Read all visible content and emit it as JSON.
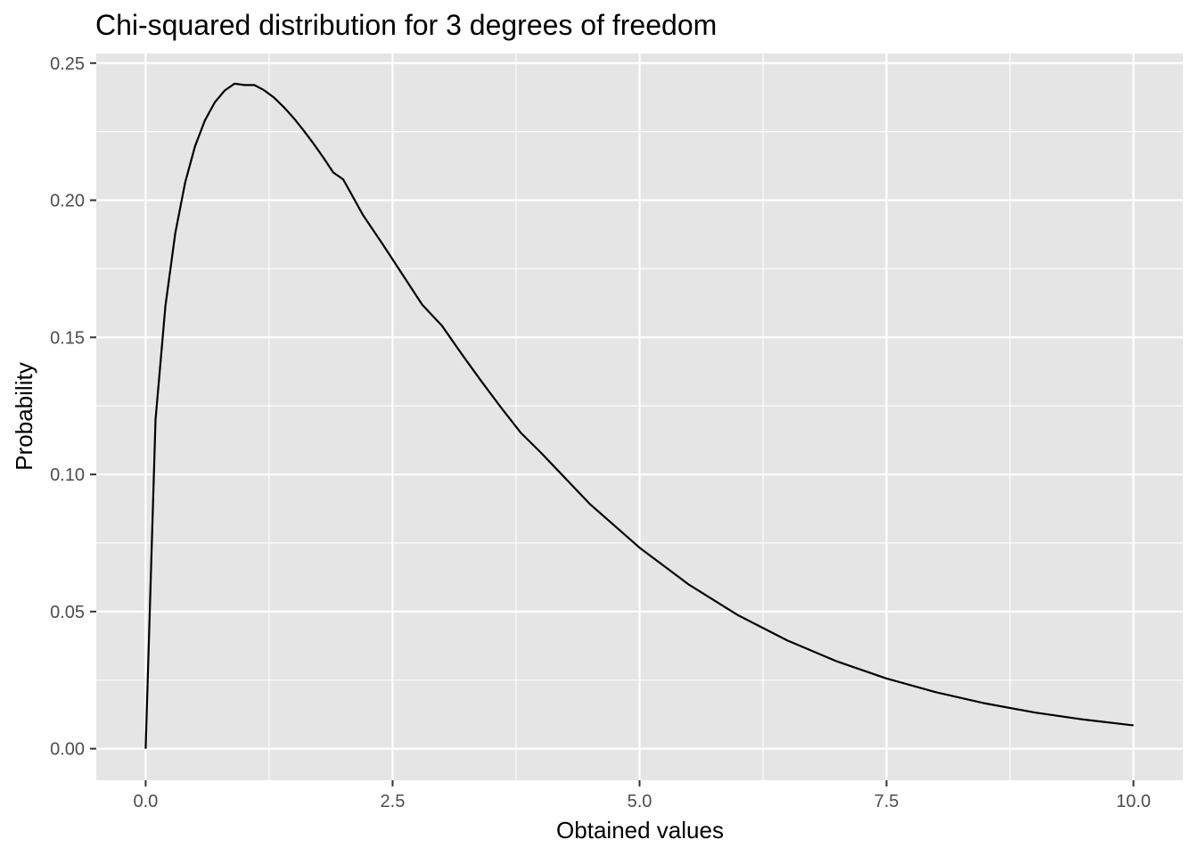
{
  "chart_data": {
    "type": "line",
    "title": "Chi-squared distribution for 3 degrees of freedom",
    "xlabel": "Obtained values",
    "ylabel": "Probability",
    "xlim": [
      -0.5,
      10.5
    ],
    "ylim": [
      -0.0115,
      0.2535
    ],
    "x_ticks": [
      0.0,
      2.5,
      5.0,
      7.5,
      10.0
    ],
    "x_tick_labels": [
      "0.0",
      "2.5",
      "5.0",
      "7.5",
      "10.0"
    ],
    "y_ticks": [
      0.0,
      0.05,
      0.1,
      0.15,
      0.2,
      0.25
    ],
    "y_tick_labels": [
      "0.00",
      "0.05",
      "0.10",
      "0.15",
      "0.20",
      "0.25"
    ],
    "grid": true,
    "legend": "none",
    "colors": {
      "panel": "#e5e5e5",
      "grid": "#ffffff",
      "line": "#000000",
      "tick": "#4d4d4d"
    },
    "series": [
      {
        "x": [
          0.0,
          0.1,
          0.2,
          0.3,
          0.4,
          0.5,
          0.6,
          0.7,
          0.8,
          0.9,
          1.0,
          1.1,
          1.2,
          1.3,
          1.4,
          1.5,
          1.6,
          1.7,
          1.8,
          1.9,
          2.0,
          2.2,
          2.4,
          2.6,
          2.8,
          3.0,
          3.2,
          3.4,
          3.6,
          3.8,
          4.0,
          4.5,
          5.0,
          5.5,
          6.0,
          6.5,
          7.0,
          7.5,
          8.0,
          8.5,
          9.0,
          9.5,
          10.0
        ],
        "y": [
          0.0,
          0.12,
          0.1614,
          0.188,
          0.2065,
          0.2197,
          0.2291,
          0.2357,
          0.24,
          0.2425,
          0.242,
          0.242,
          0.2401,
          0.2374,
          0.2339,
          0.2299,
          0.2254,
          0.2206,
          0.2155,
          0.2101,
          0.2076,
          0.1946,
          0.1839,
          0.1729,
          0.1619,
          0.1542,
          0.1439,
          0.1339,
          0.1243,
          0.1151,
          0.108,
          0.0891,
          0.0733,
          0.0598,
          0.0486,
          0.0394,
          0.0318,
          0.0256,
          0.0206,
          0.0165,
          0.0132,
          0.0106,
          0.0085
        ]
      }
    ]
  }
}
